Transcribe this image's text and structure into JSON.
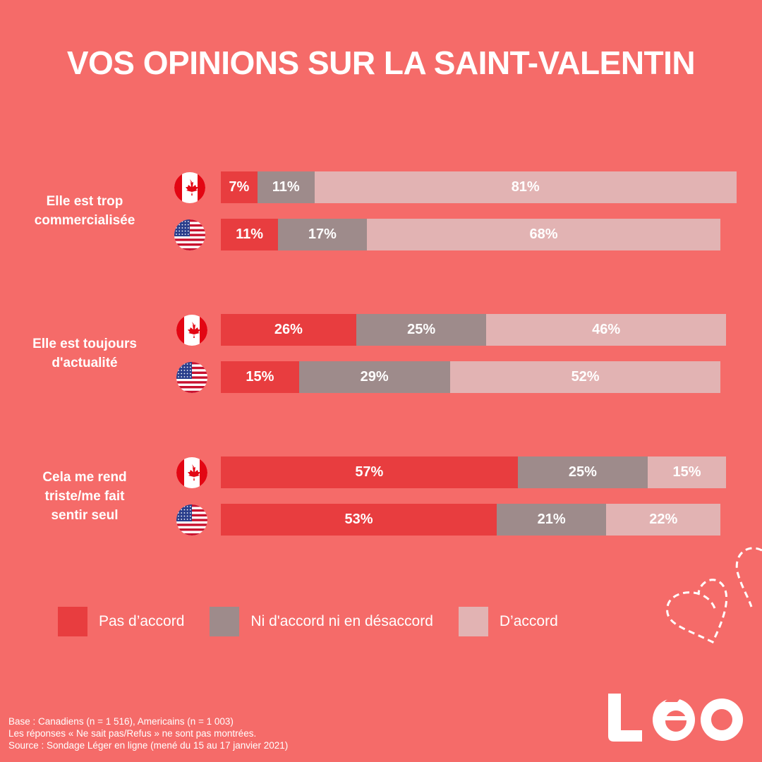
{
  "title": "VOS OPINIONS SUR LA SAINT-VALENTIN",
  "colors": {
    "background": "#F56B69",
    "pas_accord": "#E83D3F",
    "neutre": "#9E8B8B",
    "accord": "#E2B3B3"
  },
  "chart_data": {
    "type": "bar",
    "orientation": "horizontal-stacked",
    "title": "VOS OPINIONS SUR LA SAINT-VALENTIN",
    "categories": [
      "Elle est trop commercialisée",
      "Elle est toujours d'actualité",
      "Cela me rend triste/me fait sentir seul"
    ],
    "countries": [
      "Canada",
      "États-Unis"
    ],
    "series": [
      {
        "name": "Pas d’accord",
        "color": "#E83D3F",
        "canada": [
          7,
          26,
          57
        ],
        "usa": [
          11,
          15,
          53
        ]
      },
      {
        "name": "Ni d'accord ni en désaccord",
        "color": "#9E8B8B",
        "canada": [
          11,
          25,
          25
        ],
        "usa": [
          17,
          29,
          21
        ]
      },
      {
        "name": "D’accord",
        "color": "#E2B3B3",
        "canada": [
          81,
          46,
          15
        ],
        "usa": [
          68,
          52,
          22
        ]
      }
    ],
    "xlim": [
      0,
      100
    ],
    "legend": "bottom"
  },
  "groups": [
    {
      "label_lines": [
        "Elle est trop",
        "commercialisée"
      ],
      "rows": [
        {
          "country": "canada-flag",
          "values": [
            7,
            11,
            81
          ],
          "labels": [
            "7%",
            "11%",
            "81%"
          ]
        },
        {
          "country": "usa-flag",
          "values": [
            11,
            17,
            68
          ],
          "labels": [
            "11%",
            "17%",
            "68%"
          ]
        }
      ]
    },
    {
      "label_lines": [
        "Elle est toujours",
        "d'actualité"
      ],
      "rows": [
        {
          "country": "canada-flag",
          "values": [
            26,
            25,
            46
          ],
          "labels": [
            "26%",
            "25%",
            "46%"
          ]
        },
        {
          "country": "usa-flag",
          "values": [
            15,
            29,
            52
          ],
          "labels": [
            "15%",
            "29%",
            "52%"
          ]
        }
      ]
    },
    {
      "label_lines": [
        "Cela me rend",
        "triste/me fait",
        "sentir seul"
      ],
      "rows": [
        {
          "country": "canada-flag",
          "values": [
            57,
            25,
            15
          ],
          "labels": [
            "57%",
            "25%",
            "15%"
          ]
        },
        {
          "country": "usa-flag",
          "values": [
            53,
            21,
            22
          ],
          "labels": [
            "53%",
            "21%",
            "22%"
          ]
        }
      ]
    }
  ],
  "legend": [
    {
      "label": "Pas d’accord",
      "color": "#E83D3F"
    },
    {
      "label": "Ni d'accord ni en désaccord",
      "color": "#9E8B8B"
    },
    {
      "label": "D’accord",
      "color": "#E2B3B3"
    }
  ],
  "footnote": [
    "Base : Canadiens (n = 1 516), Americains (n = 1 003)",
    "Les réponses « Ne sait pas/Refus » ne sont pas montrées.",
    "Source : Sondage Léger en ligne (mené du 15 au 17 janvier 2021)"
  ],
  "logo": "leo-logo"
}
